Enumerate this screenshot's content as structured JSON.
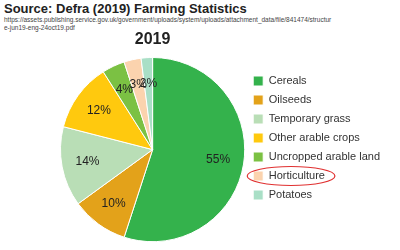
{
  "chart_data": {
    "type": "pie",
    "title": "2019",
    "annotations": [
      "Source: Defra (2019) Farming Statistics",
      "https://assets.publishing.service.gov.uk/government/uploads/system/uploads/attachment_data/file/841474/structure-jun19-eng-24oct19.pdf"
    ],
    "categories": [
      "Cereals",
      "Oilseeds",
      "Temporary grass",
      "Other arable crops",
      "Uncropped arable land",
      "Horticulture",
      "Potatoes"
    ],
    "values": [
      55,
      10,
      14,
      12,
      4,
      3,
      2
    ],
    "value_labels": [
      "55%",
      "10%",
      "14%",
      "12%",
      "4%",
      "3%",
      "2%"
    ],
    "colors": [
      "#34b24c",
      "#e3a21a",
      "#b9deb6",
      "#ffc90e",
      "#7bc143",
      "#fbd3ae",
      "#a9dfc6"
    ],
    "data_labels": true,
    "legend": "right"
  }
}
